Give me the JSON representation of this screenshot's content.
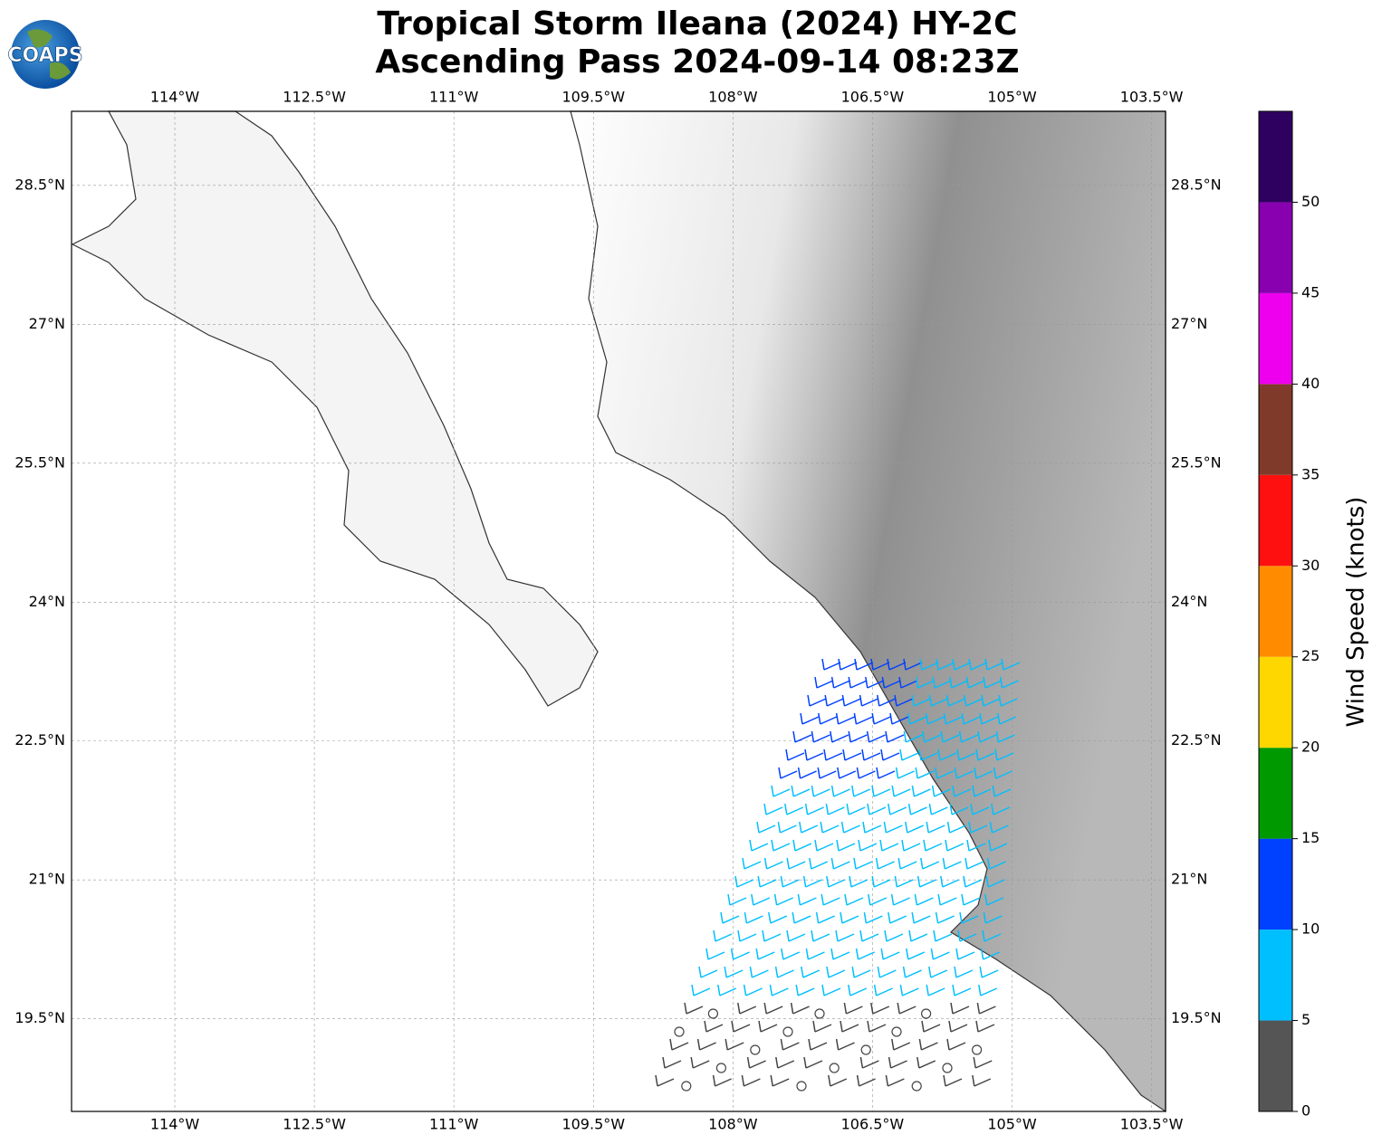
{
  "logo": "COAPS",
  "title": [
    "Tropical Storm Ileana (2024) HY-2C",
    "Ascending Pass 2024-09-14 08:23Z"
  ],
  "map": {
    "lon_range": [
      -115.11,
      -103.35
    ],
    "lat_range": [
      18.5,
      29.3
    ],
    "lon_ticks": [
      {
        "value": -114,
        "label": "114°W"
      },
      {
        "value": -112.5,
        "label": "112.5°W"
      },
      {
        "value": -111,
        "label": "111°W"
      },
      {
        "value": -109.5,
        "label": "109.5°W"
      },
      {
        "value": -108,
        "label": "108°W"
      },
      {
        "value": -106.5,
        "label": "106.5°W"
      },
      {
        "value": -105,
        "label": "105°W"
      },
      {
        "value": -103.5,
        "label": "103.5°W"
      }
    ],
    "lat_ticks": [
      {
        "value": 28.5,
        "label": "28.5°N"
      },
      {
        "value": 27,
        "label": "27°N"
      },
      {
        "value": 25.5,
        "label": "25.5°N"
      },
      {
        "value": 24,
        "label": "24°N"
      },
      {
        "value": 22.5,
        "label": "22.5°N"
      },
      {
        "value": 21,
        "label": "21°N"
      },
      {
        "value": 19.5,
        "label": "19.5°N"
      }
    ]
  },
  "colorbar": {
    "label": "Wind Speed (knots)",
    "range": [
      0,
      55
    ],
    "ticks": [
      0,
      5,
      10,
      15,
      20,
      25,
      30,
      35,
      40,
      45,
      50
    ],
    "colors": [
      "#555555",
      "#00bfff",
      "#0040ff",
      "#009900",
      "#ffd700",
      "#ff8c00",
      "#ff1010",
      "#803a2a",
      "#ee00ee",
      "#8800b0",
      "#2e0060"
    ]
  }
}
